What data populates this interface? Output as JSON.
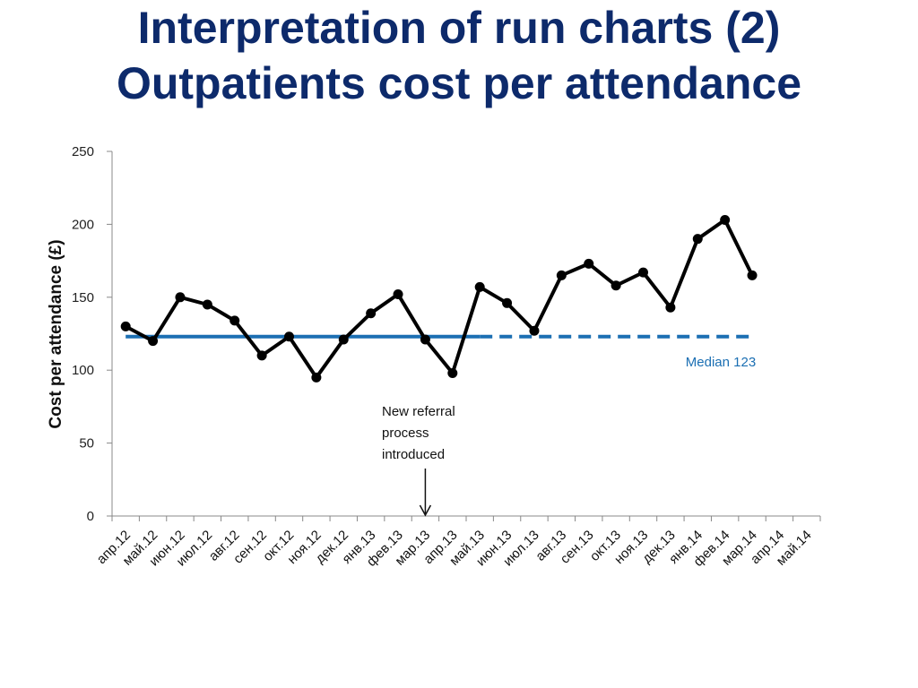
{
  "slide": {
    "title_line1": "Interpretation of run charts (2)",
    "title_line2": "Outpatients cost per attendance"
  },
  "chart_data": {
    "type": "line",
    "title": "",
    "xlabel": "",
    "ylabel": "Cost per attendance (£)",
    "ylim": [
      0,
      250
    ],
    "yticks": [
      0,
      50,
      100,
      150,
      200,
      250
    ],
    "categories": [
      "апр.12",
      "май.12",
      "июн.12",
      "июл.12",
      "авг.12",
      "сен.12",
      "окт.12",
      "ноя.12",
      "дек.12",
      "янв.13",
      "фев.13",
      "мар.13",
      "апр.13",
      "май.13",
      "июн.13",
      "июл.13",
      "авг.13",
      "сен.13",
      "окт.13",
      "ноя.13",
      "дек.13",
      "янв.14",
      "фев.14",
      "мар.14",
      "апр.14",
      "май.14"
    ],
    "series": [
      {
        "name": "",
        "color": "#000000",
        "values": [
          130,
          120,
          150,
          145,
          134,
          110,
          123,
          95,
          121,
          139,
          152,
          121,
          98,
          157,
          146,
          127,
          165,
          173,
          158,
          167,
          143,
          190,
          203,
          165,
          null,
          null
        ]
      },
      {
        "name": "",
        "color": "#1b6fb3",
        "value": 123,
        "solid_until_index": 13,
        "dashed_until_index": 23
      }
    ],
    "median_label": "Median 123",
    "annotation": {
      "lines": [
        "New referral",
        "process",
        "introduced"
      ],
      "category_index": 11
    },
    "grid": false,
    "legend": "none"
  }
}
